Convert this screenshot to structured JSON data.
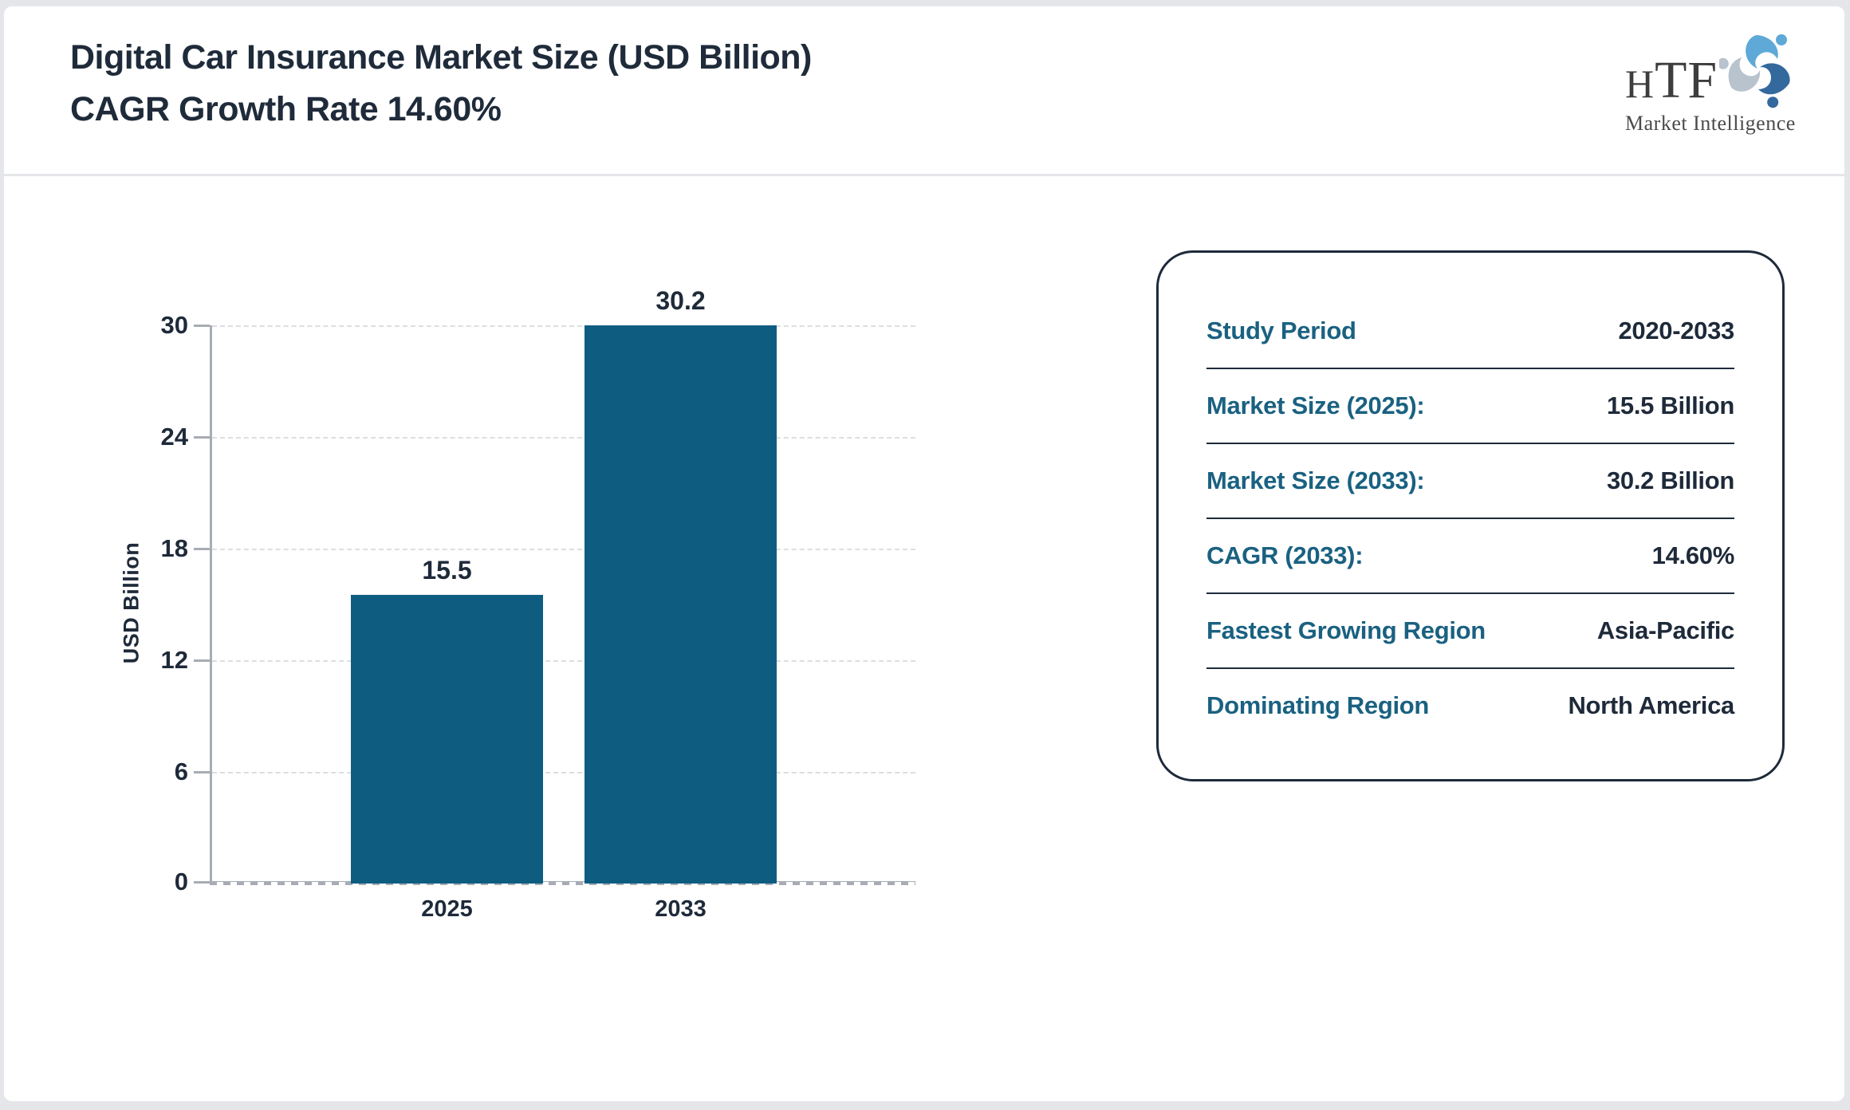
{
  "header": {
    "title_line1": "Digital Car Insurance Market Size (USD Billion)",
    "title_line2": "CAGR Growth Rate 14.60%"
  },
  "logo": {
    "name_h": "H",
    "name_tf": "TF",
    "subtitle": "Market Intelligence",
    "swirl_colors": [
      "#5ea9d7",
      "#33699c",
      "#b8c3cd"
    ]
  },
  "chart_data": {
    "type": "bar",
    "title": "Digital Car Insurance Market Size (USD Billion) CAGR Growth Rate 14.60%",
    "categories": [
      "2025",
      "2033"
    ],
    "values": [
      15.5,
      30.2
    ],
    "value_labels": [
      "15.5",
      "30.2"
    ],
    "xlabel": "",
    "ylabel": "USD Billion",
    "ylim": [
      0,
      30
    ],
    "yticks": [
      0,
      6,
      12,
      18,
      24,
      30
    ],
    "ytick_labels_desc": [
      "30",
      "24",
      "18",
      "12",
      "6",
      "0"
    ],
    "grid": "horizontal-dashed",
    "legend": false,
    "bar_color": "#0e5d81"
  },
  "panel": {
    "rows": [
      {
        "label": "Study Period",
        "value": "2020-2033"
      },
      {
        "label": "Market Size (2025):",
        "value": "15.5 Billion"
      },
      {
        "label": "Market Size (2033):",
        "value": "30.2 Billion"
      },
      {
        "label": "CAGR (2033):",
        "value": "14.60%"
      },
      {
        "label": "Fastest Growing Region",
        "value": "Asia-Pacific"
      },
      {
        "label": "Dominating Region",
        "value": "North America"
      }
    ]
  },
  "colors": {
    "accent_teal": "#1a6181",
    "bar": "#0e5d81",
    "dark_navy": "#1e2a3a",
    "axis_gray": "#a8acb4",
    "grid_gray": "#dcdee1",
    "page_border": "#e4e6ea"
  }
}
